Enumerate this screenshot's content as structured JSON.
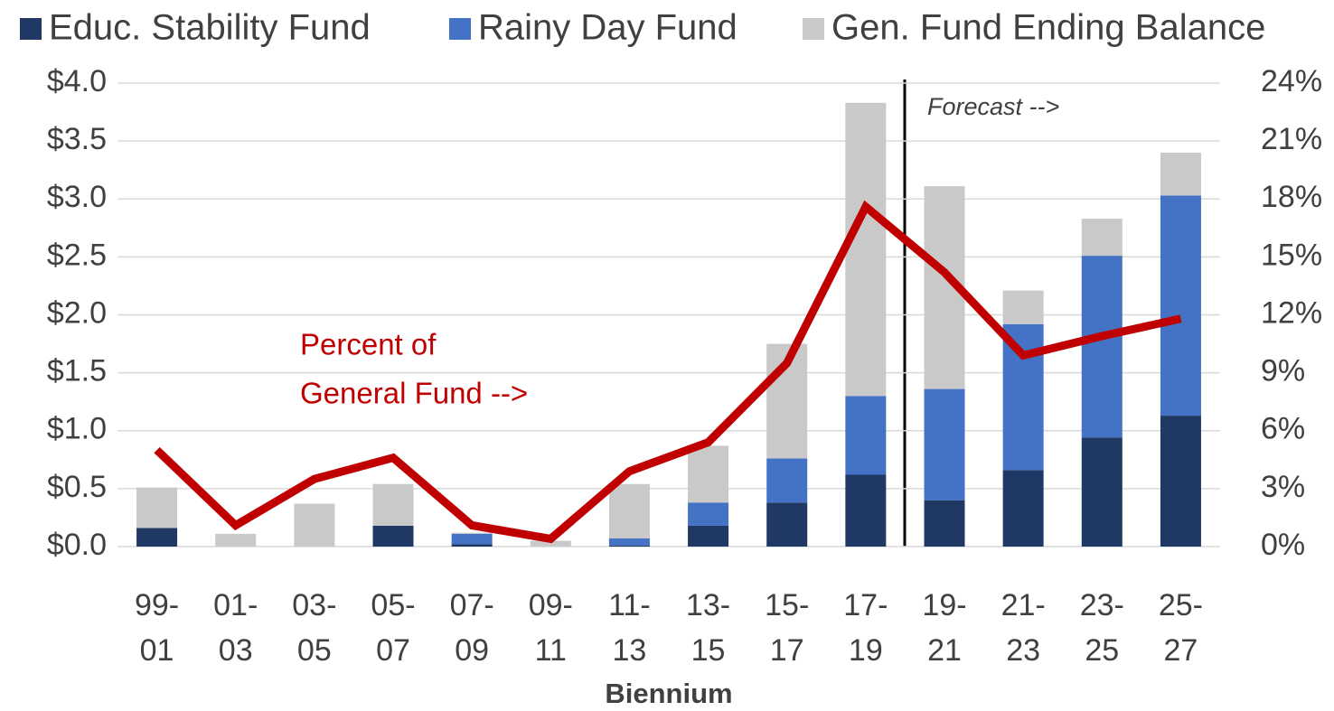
{
  "chart_data": {
    "type": "bar",
    "categories": [
      "99-\n01",
      "01-\n03",
      "03-\n05",
      "05-\n07",
      "07-\n09",
      "09-\n11",
      "11-\n13",
      "13-\n15",
      "15-\n17",
      "17-\n19",
      "19-\n21",
      "21-\n23",
      "23-\n25",
      "25-\n27"
    ],
    "series": [
      {
        "name": "Educ. Stability Fund",
        "color": "#1f3864",
        "values": [
          0.16,
          0,
          0,
          0.18,
          0.02,
          0,
          0.01,
          0.18,
          0.38,
          0.62,
          0.4,
          0.66,
          0.94,
          1.13
        ]
      },
      {
        "name": "Rainy Day Fund",
        "color": "#4472c4",
        "values": [
          0,
          0,
          0,
          0,
          0.09,
          0,
          0.06,
          0.2,
          0.38,
          0.68,
          0.96,
          1.26,
          1.57,
          1.9
        ]
      },
      {
        "name": "Gen. Fund Ending Balance",
        "color": "#c9c9c9",
        "values": [
          0.35,
          0.11,
          0.37,
          0.36,
          0.01,
          0.05,
          0.47,
          0.49,
          0.99,
          2.53,
          1.75,
          0.29,
          0.32,
          0.37
        ]
      },
      {
        "type": "line",
        "axis": "y2",
        "color": "#c00000",
        "values": [
          5.0,
          1.1,
          3.5,
          4.6,
          1.1,
          0.4,
          3.9,
          5.4,
          9.5,
          17.6,
          14.2,
          9.9,
          10.9,
          11.8
        ]
      }
    ],
    "stacked": true,
    "ylim": [
      0,
      4
    ],
    "yticks": [
      {
        "value": 0,
        "label": "$0.0"
      },
      {
        "value": 0.5,
        "label": "$0.5"
      },
      {
        "value": 1,
        "label": "$1.0"
      },
      {
        "value": 1.5,
        "label": "$1.5"
      },
      {
        "value": 2,
        "label": "$2.0"
      },
      {
        "value": 2.5,
        "label": "$2.5"
      },
      {
        "value": 3,
        "label": "$3.0"
      },
      {
        "value": 3.5,
        "label": "$3.5"
      },
      {
        "value": 4,
        "label": "$4.0"
      }
    ],
    "y2lim": [
      0,
      24
    ],
    "y2ticks": [
      {
        "value": 0,
        "label": "0%"
      },
      {
        "value": 3,
        "label": "3%"
      },
      {
        "value": 6,
        "label": "6%"
      },
      {
        "value": 9,
        "label": "9%"
      },
      {
        "value": 12,
        "label": "12%"
      },
      {
        "value": 15,
        "label": "15%"
      },
      {
        "value": 18,
        "label": "18%"
      },
      {
        "value": 21,
        "label": "21%"
      },
      {
        "value": 24,
        "label": "24%"
      }
    ],
    "xlabel": "Biennium",
    "annotations": [
      "Forecast -->"
    ],
    "line_label": [
      "Percent of",
      "General Fund -->"
    ],
    "grid": true,
    "legend": "top"
  }
}
